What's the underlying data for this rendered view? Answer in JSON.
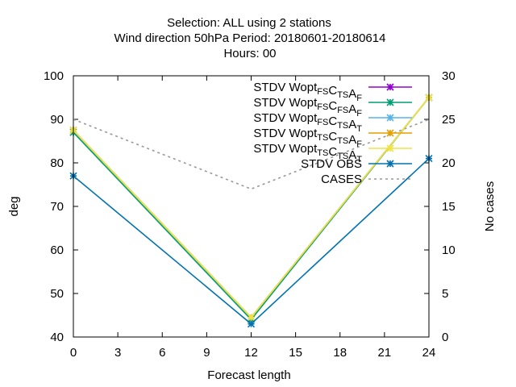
{
  "title_lines": [
    "Selection: ALL using     2 stations",
    "Wind direction 50hPa   Period: 20180601-20180614",
    "Hours:  00"
  ],
  "chart_data": {
    "type": "line",
    "xlabel": "Forecast length",
    "ylabel": "deg",
    "y2label": "No cases",
    "xlim": [
      0,
      24
    ],
    "ylim": [
      40,
      100
    ],
    "y2lim": [
      0,
      30
    ],
    "xticks": [
      "0",
      "3",
      "6",
      "9",
      "12",
      "15",
      "18",
      "21",
      "24"
    ],
    "yticks": [
      "40",
      "50",
      "60",
      "70",
      "80",
      "90",
      "100"
    ],
    "y2ticks": [
      "0",
      "5",
      "10",
      "15",
      "20",
      "25",
      "30"
    ],
    "legend_position": "top-right",
    "grid": false,
    "series": [
      {
        "name": "STDV Wopt_FS C_TS A_F",
        "label_parts": [
          [
            "STDV Wopt",
            ""
          ],
          [
            "FS",
            "sub"
          ],
          [
            "C",
            ""
          ],
          [
            "TS",
            "sub"
          ],
          [
            "A",
            ""
          ],
          [
            "F",
            "sub"
          ]
        ],
        "color": "#9400d3",
        "marker": "star",
        "axis": "y",
        "x": [
          0,
          12,
          24
        ],
        "y": [
          87.5,
          44.5,
          95.0
        ]
      },
      {
        "name": "STDV Wopt_FS C_FS A_F",
        "label_parts": [
          [
            "STDV Wopt",
            ""
          ],
          [
            "FS",
            "sub"
          ],
          [
            "C",
            ""
          ],
          [
            "FS",
            "sub"
          ],
          [
            "A",
            ""
          ],
          [
            "F",
            "sub"
          ]
        ],
        "color": "#009e73",
        "marker": "star",
        "axis": "y",
        "x": [
          0,
          12,
          24
        ],
        "y": [
          87.0,
          44.0,
          95.0
        ]
      },
      {
        "name": "STDV Wopt_FS C_TS A_T",
        "label_parts": [
          [
            "STDV Wopt",
            ""
          ],
          [
            "FS",
            "sub"
          ],
          [
            "C",
            ""
          ],
          [
            "TS",
            "sub"
          ],
          [
            "A",
            ""
          ],
          [
            "T",
            "sub"
          ]
        ],
        "color": "#56b4e9",
        "marker": "star",
        "axis": "y",
        "x": [
          0,
          12,
          24
        ],
        "y": [
          87.5,
          44.5,
          95.0
        ]
      },
      {
        "name": "STDV Wopt_TS C_TS A_F",
        "label_parts": [
          [
            "STDV Wopt",
            ""
          ],
          [
            "TS",
            "sub"
          ],
          [
            "C",
            ""
          ],
          [
            "TS",
            "sub"
          ],
          [
            "A",
            ""
          ],
          [
            "F",
            "sub"
          ]
        ],
        "color": "#e69f00",
        "marker": "star",
        "axis": "y",
        "x": [
          0,
          12,
          24
        ],
        "y": [
          87.5,
          44.5,
          95.0
        ]
      },
      {
        "name": "STDV Wopt_TS C_TS A_T",
        "label_parts": [
          [
            "STDV Wopt",
            ""
          ],
          [
            "TS",
            "sub"
          ],
          [
            "C",
            ""
          ],
          [
            "TS",
            "sub"
          ],
          [
            "A",
            ""
          ],
          [
            "T",
            "sub"
          ]
        ],
        "color": "#f0e442",
        "marker": "star",
        "axis": "y",
        "x": [
          0,
          12,
          24
        ],
        "y": [
          87.5,
          44.5,
          95.0
        ]
      },
      {
        "name": "STDV OBS",
        "label_parts": [
          [
            "STDV OBS",
            ""
          ]
        ],
        "color": "#0072b2",
        "marker": "star",
        "axis": "y",
        "x": [
          0,
          12,
          24
        ],
        "y": [
          77.0,
          43.0,
          81.0
        ]
      },
      {
        "name": "CASES",
        "label_parts": [
          [
            "CASES",
            ""
          ]
        ],
        "color": "#999999",
        "marker": "none",
        "dashed": true,
        "axis": "y2",
        "x": [
          0,
          12,
          24
        ],
        "y": [
          25,
          17,
          25
        ]
      }
    ]
  }
}
